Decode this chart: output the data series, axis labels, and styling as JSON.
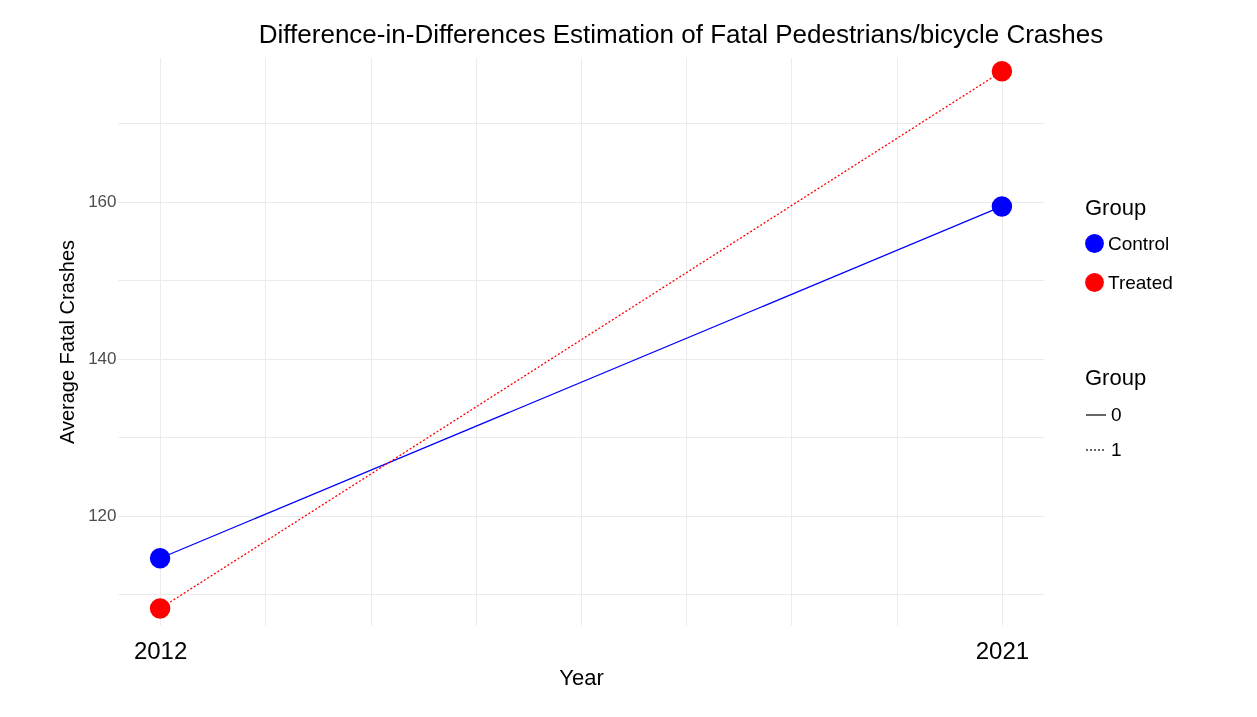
{
  "chart_data": {
    "type": "line",
    "title": "Difference-in-Differences Estimation of Fatal Pedestrians/bicycle Crashes",
    "xlabel": "Year",
    "ylabel": "Average Fatal Crashes",
    "legend_title": "Group",
    "annotations": [
      "Group",
      "0",
      "1"
    ],
    "x": [
      2012,
      2021
    ],
    "series": [
      {
        "name": "Control",
        "color": "#0000ff",
        "line_style": "solid",
        "values": [
          114.6,
          159.4
        ]
      },
      {
        "name": "Treated",
        "color": "#ff0000",
        "line_style": "dotted",
        "values": [
          108.2,
          176.6
        ]
      }
    ],
    "xlim": [
      2011.55,
      2021.45
    ],
    "xticks": [
      2012,
      {
        "value": 2013.125,
        "label": null
      },
      {
        "value": 2014.25,
        "label": null
      },
      {
        "value": 2015.375,
        "label": null
      },
      {
        "value": 2016.5,
        "label": null
      },
      {
        "value": 2017.625,
        "label": null
      },
      {
        "value": 2018.75,
        "label": null
      },
      {
        "value": 2019.875,
        "label": null
      },
      2021
    ],
    "ylim": [
      106.1,
      178.3
    ],
    "yticks": [
      {
        "value": 110,
        "label": null
      },
      120,
      {
        "value": 130,
        "label": null
      },
      140,
      {
        "value": 150,
        "label": null
      },
      160,
      {
        "value": 170,
        "label": null
      }
    ],
    "grid": true,
    "legend": "right",
    "marker": "circle"
  }
}
